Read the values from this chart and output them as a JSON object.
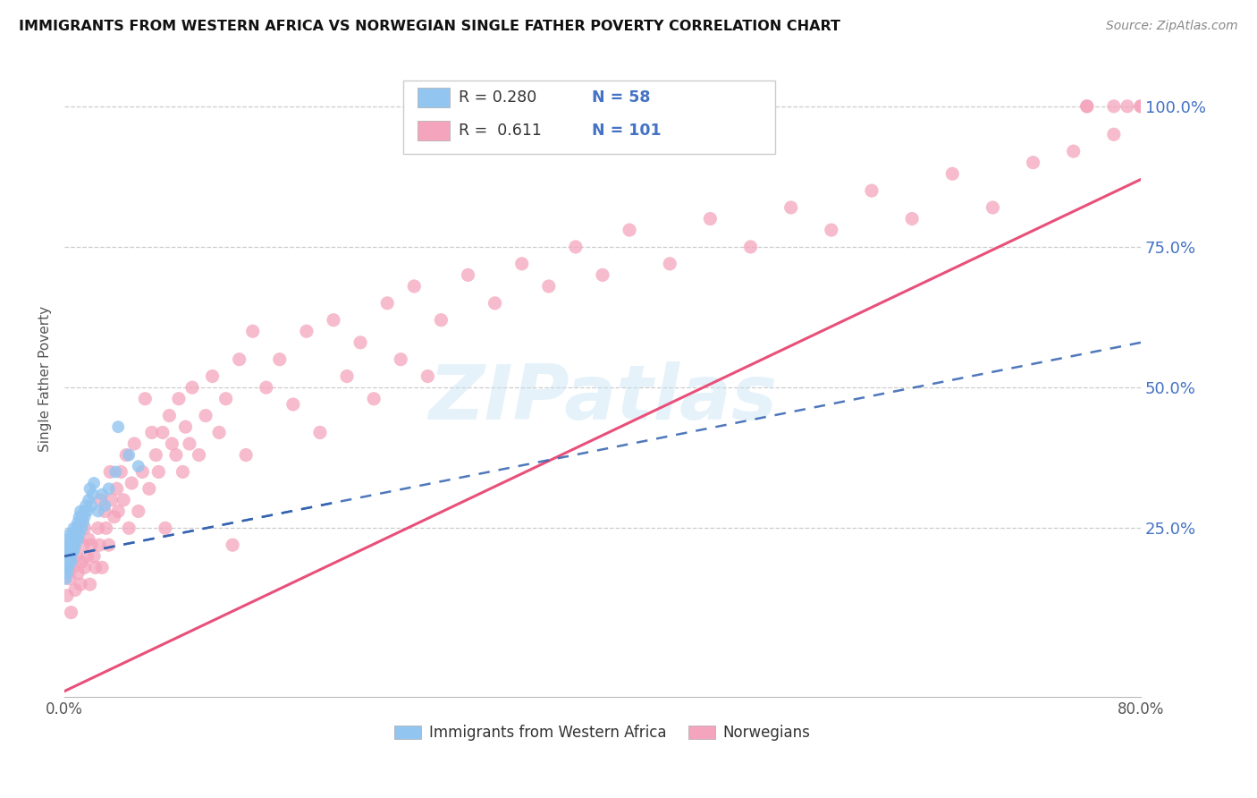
{
  "title": "IMMIGRANTS FROM WESTERN AFRICA VS NORWEGIAN SINGLE FATHER POVERTY CORRELATION CHART",
  "source": "Source: ZipAtlas.com",
  "ylabel": "Single Father Poverty",
  "xlim": [
    0.0,
    0.8
  ],
  "ylim": [
    -0.05,
    1.08
  ],
  "xticks": [
    0.0,
    0.1,
    0.2,
    0.3,
    0.4,
    0.5,
    0.6,
    0.7,
    0.8
  ],
  "xticklabels": [
    "0.0%",
    "",
    "",
    "",
    "",
    "",
    "",
    "",
    "80.0%"
  ],
  "yticks_right": [
    0.25,
    0.5,
    0.75,
    1.0
  ],
  "ytick_right_labels": [
    "25.0%",
    "50.0%",
    "75.0%",
    "100.0%"
  ],
  "blue_R": 0.28,
  "blue_N": 58,
  "pink_R": 0.611,
  "pink_N": 101,
  "blue_color": "#92C5F0",
  "pink_color": "#F4A4BC",
  "blue_line_color": "#3060B0",
  "pink_line_color": "#E8507A",
  "watermark": "ZIPatlas",
  "legend_label_blue": "Immigrants from Western Africa",
  "legend_label_pink": "Norwegians",
  "blue_scatter_x": [
    0.001,
    0.001,
    0.001,
    0.002,
    0.002,
    0.002,
    0.002,
    0.003,
    0.003,
    0.003,
    0.003,
    0.004,
    0.004,
    0.004,
    0.004,
    0.005,
    0.005,
    0.005,
    0.005,
    0.006,
    0.006,
    0.006,
    0.007,
    0.007,
    0.007,
    0.007,
    0.008,
    0.008,
    0.008,
    0.009,
    0.009,
    0.01,
    0.01,
    0.01,
    0.011,
    0.011,
    0.012,
    0.012,
    0.013,
    0.013,
    0.014,
    0.015,
    0.015,
    0.016,
    0.017,
    0.018,
    0.019,
    0.02,
    0.021,
    0.022,
    0.025,
    0.028,
    0.03,
    0.033,
    0.038,
    0.04,
    0.048,
    0.055
  ],
  "blue_scatter_y": [
    0.2,
    0.18,
    0.16,
    0.21,
    0.19,
    0.22,
    0.17,
    0.2,
    0.23,
    0.18,
    0.19,
    0.21,
    0.22,
    0.24,
    0.2,
    0.22,
    0.2,
    0.19,
    0.23,
    0.21,
    0.24,
    0.22,
    0.23,
    0.25,
    0.21,
    0.22,
    0.24,
    0.23,
    0.22,
    0.25,
    0.24,
    0.26,
    0.23,
    0.25,
    0.27,
    0.24,
    0.26,
    0.28,
    0.25,
    0.27,
    0.26,
    0.28,
    0.27,
    0.29,
    0.28,
    0.3,
    0.32,
    0.29,
    0.31,
    0.33,
    0.28,
    0.31,
    0.29,
    0.32,
    0.35,
    0.43,
    0.38,
    0.36
  ],
  "pink_scatter_x": [
    0.002,
    0.004,
    0.005,
    0.006,
    0.008,
    0.009,
    0.01,
    0.012,
    0.013,
    0.014,
    0.015,
    0.015,
    0.017,
    0.018,
    0.019,
    0.02,
    0.022,
    0.023,
    0.025,
    0.026,
    0.027,
    0.028,
    0.03,
    0.031,
    0.033,
    0.034,
    0.035,
    0.037,
    0.039,
    0.04,
    0.042,
    0.044,
    0.046,
    0.048,
    0.05,
    0.052,
    0.055,
    0.058,
    0.06,
    0.063,
    0.065,
    0.068,
    0.07,
    0.073,
    0.075,
    0.078,
    0.08,
    0.083,
    0.085,
    0.088,
    0.09,
    0.093,
    0.095,
    0.1,
    0.105,
    0.11,
    0.115,
    0.12,
    0.125,
    0.13,
    0.135,
    0.14,
    0.15,
    0.16,
    0.17,
    0.18,
    0.19,
    0.2,
    0.21,
    0.22,
    0.23,
    0.24,
    0.25,
    0.26,
    0.27,
    0.28,
    0.3,
    0.32,
    0.34,
    0.36,
    0.38,
    0.4,
    0.42,
    0.45,
    0.48,
    0.51,
    0.54,
    0.57,
    0.6,
    0.63,
    0.66,
    0.69,
    0.72,
    0.75,
    0.76,
    0.76,
    0.78,
    0.78,
    0.79,
    0.8,
    0.8
  ],
  "pink_scatter_y": [
    0.13,
    0.16,
    0.1,
    0.18,
    0.14,
    0.2,
    0.17,
    0.15,
    0.19,
    0.22,
    0.18,
    0.25,
    0.2,
    0.23,
    0.15,
    0.22,
    0.2,
    0.18,
    0.25,
    0.22,
    0.3,
    0.18,
    0.28,
    0.25,
    0.22,
    0.35,
    0.3,
    0.27,
    0.32,
    0.28,
    0.35,
    0.3,
    0.38,
    0.25,
    0.33,
    0.4,
    0.28,
    0.35,
    0.48,
    0.32,
    0.42,
    0.38,
    0.35,
    0.42,
    0.25,
    0.45,
    0.4,
    0.38,
    0.48,
    0.35,
    0.43,
    0.4,
    0.5,
    0.38,
    0.45,
    0.52,
    0.42,
    0.48,
    0.22,
    0.55,
    0.38,
    0.6,
    0.5,
    0.55,
    0.47,
    0.6,
    0.42,
    0.62,
    0.52,
    0.58,
    0.48,
    0.65,
    0.55,
    0.68,
    0.52,
    0.62,
    0.7,
    0.65,
    0.72,
    0.68,
    0.75,
    0.7,
    0.78,
    0.72,
    0.8,
    0.75,
    0.82,
    0.78,
    0.85,
    0.8,
    0.88,
    0.82,
    0.9,
    0.92,
    1.0,
    1.0,
    0.95,
    1.0,
    1.0,
    1.0,
    1.0
  ],
  "pink_line_x0": 0.0,
  "pink_line_y0": -0.04,
  "pink_line_x1": 0.8,
  "pink_line_y1": 0.87,
  "blue_line_x0": 0.0,
  "blue_line_y0": 0.2,
  "blue_line_x1": 0.2,
  "blue_line_y1": 0.295
}
